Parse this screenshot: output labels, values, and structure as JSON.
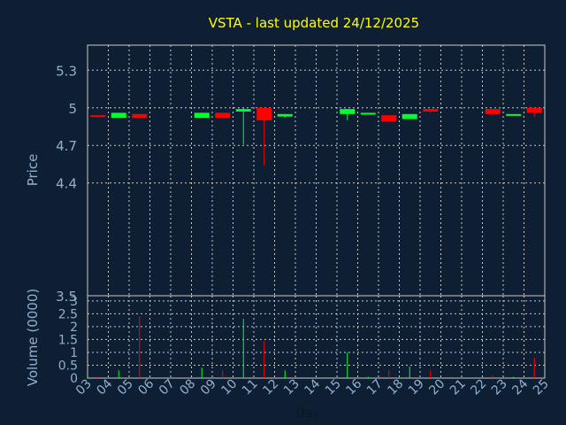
{
  "chart_data": {
    "type": "candlestick",
    "title": "VSTA - last updated 24/12/2025",
    "ylabel": "Price",
    "volume_label": "Volume (0000)",
    "xlabel": "Day",
    "price_ylim": [
      3.5,
      5.5
    ],
    "price_ticks": [
      "5.3",
      "5",
      "4.7",
      "4.4",
      "3.5"
    ],
    "volume_ylim": [
      0,
      3.2
    ],
    "volume_ticks": [
      "0",
      "0.5",
      "1",
      "1.5",
      "2",
      "2.5",
      "3"
    ],
    "days": [
      "03",
      "04",
      "05",
      "06",
      "07",
      "08",
      "09",
      "10",
      "11",
      "12",
      "13",
      "14",
      "15",
      "16",
      "17",
      "18",
      "19",
      "20",
      "21",
      "22",
      "23",
      "24",
      "25"
    ],
    "grid": true,
    "colors": {
      "up": "#00ff33",
      "down": "#ff0000",
      "background": "#0f1f33",
      "grid": "#c8c8c8",
      "title": "#ffff00",
      "axis_text": "#8fb0cf"
    },
    "candles": [
      {
        "day": "03",
        "open": 4.94,
        "close": 4.93,
        "high": 4.94,
        "low": 4.93,
        "volume": 0.05
      },
      {
        "day": "04",
        "open": 4.92,
        "close": 4.96,
        "high": 4.96,
        "low": 4.92,
        "volume": 0.3
      },
      {
        "day": "05",
        "open": 4.95,
        "close": 4.92,
        "high": 4.95,
        "low": 4.92,
        "volume": 2.4
      },
      {
        "day": "08",
        "open": 4.92,
        "close": 4.96,
        "high": 4.96,
        "low": 4.92,
        "volume": 0.4
      },
      {
        "day": "09",
        "open": 4.96,
        "close": 4.92,
        "high": 4.96,
        "low": 4.92,
        "volume": 0.3
      },
      {
        "day": "10",
        "open": 4.97,
        "close": 4.99,
        "high": 5.0,
        "low": 4.71,
        "volume": 2.3
      },
      {
        "day": "11",
        "open": 5.0,
        "close": 4.9,
        "high": 5.0,
        "low": 4.54,
        "volume": 1.45
      },
      {
        "day": "12",
        "open": 4.93,
        "close": 4.95,
        "high": 4.95,
        "low": 4.92,
        "volume": 0.3
      },
      {
        "day": "15",
        "open": 4.95,
        "close": 4.99,
        "high": 4.99,
        "low": 4.9,
        "volume": 1.0
      },
      {
        "day": "16",
        "open": 4.95,
        "close": 4.96,
        "high": 4.96,
        "low": 4.95,
        "volume": 0.05
      },
      {
        "day": "17",
        "open": 4.94,
        "close": 4.89,
        "high": 4.94,
        "low": 4.89,
        "volume": 0.3
      },
      {
        "day": "18",
        "open": 4.91,
        "close": 4.95,
        "high": 4.95,
        "low": 4.91,
        "volume": 0.45
      },
      {
        "day": "19",
        "open": 4.99,
        "close": 4.97,
        "high": 4.99,
        "low": 4.96,
        "volume": 0.3
      },
      {
        "day": "22",
        "open": 4.99,
        "close": 4.95,
        "high": 4.99,
        "low": 4.94,
        "volume": 0.1
      },
      {
        "day": "23",
        "open": 4.94,
        "close": 4.95,
        "high": 4.95,
        "low": 4.94,
        "volume": 0.05
      },
      {
        "day": "24",
        "open": 5.0,
        "close": 4.96,
        "high": 5.0,
        "low": 4.93,
        "volume": 0.8
      }
    ]
  }
}
